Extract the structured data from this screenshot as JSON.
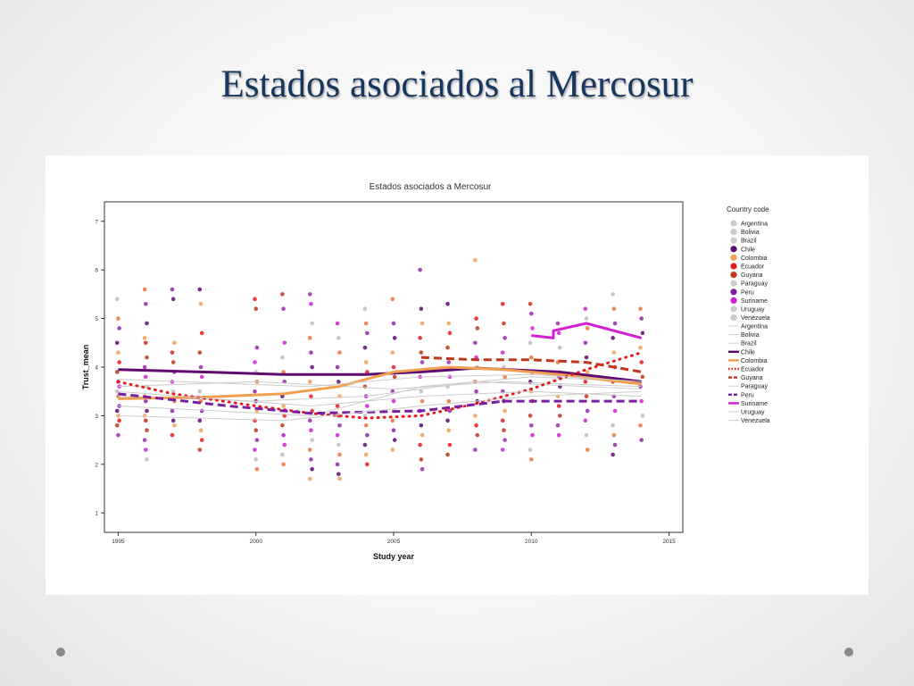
{
  "slide": {
    "title": "Estados asociados al Mercosur"
  },
  "chart_data": {
    "type": "scatter",
    "title": "Estados asociados a Mercosur",
    "xlabel": "Study year",
    "ylabel": "Trust_mean",
    "xlim": [
      1994.5,
      2015.5
    ],
    "ylim": [
      0.6,
      7.4
    ],
    "xticks": [
      1995,
      2000,
      2005,
      2010,
      2015
    ],
    "yticks": [
      1,
      2,
      3,
      4,
      5,
      6,
      7
    ],
    "grid": false,
    "legend_placement": "right",
    "legend_title": "Country code",
    "series": [
      {
        "name": "Argentina",
        "color": "#cccccc",
        "line_style": "solid",
        "line": [
          [
            1995,
            3.4
          ],
          [
            2000,
            3.3
          ],
          [
            2004,
            3.4
          ],
          [
            2008,
            3.7
          ],
          [
            2014,
            3.55
          ]
        ]
      },
      {
        "name": "Bolivia",
        "color": "#cccccc",
        "line_style": "solid",
        "line": [
          [
            1995,
            3.2
          ],
          [
            2002,
            3.0
          ],
          [
            2006,
            3.6
          ],
          [
            2010,
            3.8
          ],
          [
            2014,
            3.7
          ]
        ]
      },
      {
        "name": "Brazil",
        "color": "#cccccc",
        "line_style": "solid",
        "line": [
          [
            1995,
            3.6
          ],
          [
            2000,
            3.7
          ],
          [
            2005,
            3.55
          ],
          [
            2009,
            3.7
          ],
          [
            2014,
            3.6
          ]
        ]
      },
      {
        "name": "Chile",
        "color": "#5e0a6e",
        "line_style": "solid",
        "line": [
          [
            1995,
            3.95
          ],
          [
            1998,
            3.9
          ],
          [
            2001,
            3.85
          ],
          [
            2004,
            3.85
          ],
          [
            2006,
            3.9
          ],
          [
            2008,
            3.98
          ],
          [
            2011,
            3.9
          ],
          [
            2014,
            3.7
          ]
        ]
      },
      {
        "name": "Colombia",
        "color": "#f0a050",
        "line_style": "solid",
        "line": [
          [
            1995,
            3.35
          ],
          [
            1998,
            3.38
          ],
          [
            2001,
            3.45
          ],
          [
            2003,
            3.6
          ],
          [
            2005,
            3.9
          ],
          [
            2007,
            4.0
          ],
          [
            2009,
            3.95
          ],
          [
            2011,
            3.85
          ],
          [
            2014,
            3.65
          ]
        ]
      },
      {
        "name": "Ecuador",
        "color": "#e41a1c",
        "line_style": "dotted",
        "line": [
          [
            1995,
            3.7
          ],
          [
            1997,
            3.45
          ],
          [
            2000,
            3.2
          ],
          [
            2002,
            3.05
          ],
          [
            2004,
            2.95
          ],
          [
            2006,
            3.0
          ],
          [
            2008,
            3.25
          ],
          [
            2010,
            3.55
          ],
          [
            2012,
            3.95
          ],
          [
            2014,
            4.3
          ]
        ]
      },
      {
        "name": "Guyana",
        "color": "#c0361a",
        "line_style": "dashed",
        "line": [
          [
            2006,
            4.2
          ],
          [
            2008,
            4.15
          ],
          [
            2010,
            4.15
          ],
          [
            2012,
            4.1
          ],
          [
            2014,
            3.9
          ]
        ]
      },
      {
        "name": "Paraguay",
        "color": "#cccccc",
        "line_style": "solid",
        "line": [
          [
            1995,
            3.5
          ],
          [
            2002,
            3.2
          ],
          [
            2006,
            3.4
          ],
          [
            2010,
            3.5
          ],
          [
            2014,
            3.4
          ]
        ]
      },
      {
        "name": "Peru",
        "color": "#7b1fa2",
        "line_style": "dashed",
        "line": [
          [
            1995,
            3.45
          ],
          [
            1999,
            3.2
          ],
          [
            2002,
            3.05
          ],
          [
            2006,
            3.1
          ],
          [
            2009,
            3.3
          ],
          [
            2014,
            3.3
          ]
        ]
      },
      {
        "name": "Suriname",
        "color": "#d020d0",
        "line_style": "solid",
        "line": [
          [
            2010,
            4.65
          ],
          [
            2010.8,
            4.6
          ],
          [
            2010.8,
            4.75
          ],
          [
            2012,
            4.9
          ],
          [
            2014,
            4.6
          ]
        ]
      },
      {
        "name": "Uruguay",
        "color": "#cccccc",
        "line_style": "solid",
        "line": [
          [
            1995,
            3.75
          ],
          [
            2002,
            3.6
          ],
          [
            2006,
            3.8
          ],
          [
            2010,
            3.85
          ],
          [
            2014,
            3.7
          ]
        ]
      },
      {
        "name": "Venezuela",
        "color": "#cccccc",
        "line_style": "solid",
        "line": [
          [
            1995,
            3.0
          ],
          [
            2001,
            2.9
          ],
          [
            2006,
            3.2
          ],
          [
            2010,
            3.4
          ],
          [
            2014,
            3.5
          ]
        ]
      }
    ],
    "points_by_year": [
      {
        "year": 1995,
        "values": [
          5.4,
          5.0,
          4.8,
          4.5,
          4.3,
          4.1,
          3.9,
          3.7,
          3.6,
          3.5,
          3.4,
          3.2,
          3.1,
          3.0,
          2.9,
          2.8,
          2.6
        ]
      },
      {
        "year": 1996,
        "values": [
          5.6,
          5.3,
          4.9,
          4.6,
          4.5,
          4.2,
          4.0,
          3.8,
          3.6,
          3.4,
          3.3,
          3.1,
          3.0,
          2.9,
          2.7,
          2.5,
          2.3,
          2.1
        ]
      },
      {
        "year": 1997,
        "values": [
          5.6,
          5.4,
          4.5,
          4.3,
          4.1,
          3.9,
          3.7,
          3.5,
          3.3,
          3.1,
          2.9,
          2.8,
          2.6
        ]
      },
      {
        "year": 1998,
        "values": [
          5.6,
          5.3,
          4.7,
          4.3,
          4.0,
          3.8,
          3.5,
          3.3,
          3.1,
          2.9,
          2.7,
          2.5,
          2.3
        ]
      },
      {
        "year": 2000,
        "values": [
          5.4,
          5.2,
          4.4,
          4.1,
          3.9,
          3.7,
          3.5,
          3.3,
          3.1,
          2.9,
          2.7,
          2.5,
          2.3,
          2.1,
          1.9
        ]
      },
      {
        "year": 2001,
        "values": [
          5.5,
          5.2,
          4.5,
          4.2,
          3.9,
          3.7,
          3.4,
          3.2,
          3.0,
          2.8,
          2.6,
          2.4,
          2.2,
          2.0
        ]
      },
      {
        "year": 2002,
        "values": [
          5.5,
          5.3,
          4.9,
          4.6,
          4.3,
          4.0,
          3.7,
          3.4,
          3.1,
          2.9,
          2.7,
          2.5,
          2.3,
          2.1,
          1.9,
          1.7
        ]
      },
      {
        "year": 2003,
        "values": [
          4.9,
          4.6,
          4.3,
          4.0,
          3.7,
          3.4,
          3.2,
          3.0,
          2.8,
          2.6,
          2.4,
          2.2,
          2.0,
          1.8,
          1.7
        ]
      },
      {
        "year": 2004,
        "values": [
          5.2,
          4.9,
          4.7,
          4.4,
          4.1,
          3.9,
          3.6,
          3.4,
          3.2,
          3.0,
          2.8,
          2.6,
          2.4,
          2.2,
          2.0
        ]
      },
      {
        "year": 2005,
        "values": [
          5.4,
          4.9,
          4.6,
          4.3,
          4.0,
          3.8,
          3.5,
          3.3,
          3.1,
          2.9,
          2.7,
          2.5,
          2.3
        ]
      },
      {
        "year": 2006,
        "values": [
          6.0,
          5.2,
          4.9,
          4.6,
          4.3,
          4.1,
          3.8,
          3.5,
          3.3,
          3.1,
          2.8,
          2.6,
          2.4,
          2.1,
          1.9
        ]
      },
      {
        "year": 2007,
        "values": [
          5.3,
          4.9,
          4.7,
          4.4,
          4.1,
          3.8,
          3.6,
          3.3,
          3.1,
          2.9,
          2.7,
          2.4,
          2.2
        ]
      },
      {
        "year": 2008,
        "values": [
          6.2,
          5.0,
          4.8,
          4.5,
          4.2,
          4.0,
          3.7,
          3.5,
          3.3,
          3.0,
          2.8,
          2.6,
          2.3
        ]
      },
      {
        "year": 2009,
        "values": [
          5.3,
          4.9,
          4.6,
          4.3,
          4.0,
          3.8,
          3.5,
          3.3,
          3.1,
          2.9,
          2.7,
          2.5,
          2.3
        ]
      },
      {
        "year": 2010,
        "values": [
          5.3,
          5.1,
          4.8,
          4.5,
          4.2,
          3.9,
          3.7,
          3.5,
          3.3,
          3.0,
          2.8,
          2.6,
          2.3,
          2.1
        ]
      },
      {
        "year": 2011,
        "values": [
          4.9,
          4.7,
          4.4,
          4.1,
          3.8,
          3.6,
          3.4,
          3.2,
          3.0,
          2.8,
          2.6
        ]
      },
      {
        "year": 2012,
        "values": [
          5.2,
          5.0,
          4.8,
          4.5,
          4.2,
          3.9,
          3.7,
          3.4,
          3.1,
          2.9,
          2.6,
          2.3
        ]
      },
      {
        "year": 2013,
        "values": [
          5.5,
          5.2,
          4.9,
          4.6,
          4.3,
          4.0,
          3.7,
          3.4,
          3.1,
          2.8,
          2.6,
          2.4,
          2.2
        ]
      },
      {
        "year": 2014,
        "values": [
          5.2,
          5.0,
          4.7,
          4.4,
          4.1,
          3.8,
          3.6,
          3.3,
          3.0,
          2.8,
          2.5
        ]
      }
    ]
  }
}
